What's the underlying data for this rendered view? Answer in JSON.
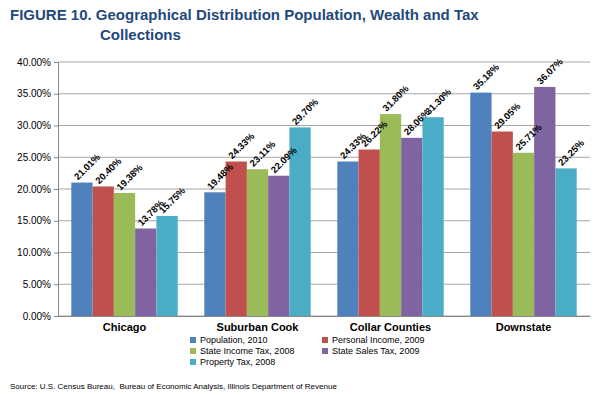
{
  "chart_data": {
    "type": "bar",
    "title": "FIGURE 10.  Geographical Distribution Population, Wealth and Tax Collections",
    "categories": [
      "Chicago",
      "Suburban Cook",
      "Collar Counties",
      "Downstate"
    ],
    "series": [
      {
        "name": "Population, 2010",
        "color": "#4f81bd",
        "values": [
          21.01,
          19.48,
          24.33,
          35.18
        ],
        "value_labels": [
          "21.01%",
          "19.48%",
          "24.33%",
          "35.18%"
        ]
      },
      {
        "name": "Personal Income, 2009",
        "color": "#c0504d",
        "values": [
          20.4,
          24.33,
          26.22,
          29.05
        ],
        "value_labels": [
          "20.40%",
          "24.33%",
          "26.22%",
          "29.05%"
        ]
      },
      {
        "name": "State Income Tax, 2008",
        "color": "#9bbb59",
        "values": [
          19.38,
          23.11,
          31.8,
          25.71
        ],
        "value_labels": [
          "19.38%",
          "23.11%",
          "31.80%",
          "25.71%"
        ]
      },
      {
        "name": "State Sales Tax, 2009",
        "color": "#8064a2",
        "values": [
          13.78,
          22.09,
          28.06,
          36.07
        ],
        "value_labels": [
          "13.78%",
          "22.09%",
          "28.06%",
          "36.07%"
        ]
      },
      {
        "name": "Property Tax, 2008",
        "color": "#4bacc6",
        "values": [
          15.75,
          29.7,
          31.3,
          23.25
        ],
        "value_labels": [
          "15.75%",
          "29.70%",
          "31.30%",
          "23.25%"
        ]
      }
    ],
    "ylim": [
      0,
      40
    ],
    "yticks": [
      {
        "value": 0,
        "label": "0.00%"
      },
      {
        "value": 5,
        "label": "5.00%"
      },
      {
        "value": 10,
        "label": "10.00%"
      },
      {
        "value": 15,
        "label": "15.00%"
      },
      {
        "value": 20,
        "label": "20.00%"
      },
      {
        "value": 25,
        "label": "25.00%"
      },
      {
        "value": 30,
        "label": "30.00%"
      },
      {
        "value": 35,
        "label": "35.00%"
      },
      {
        "value": 40,
        "label": "40.00%"
      }
    ],
    "grid": true,
    "legend": "bottom",
    "data_labels": true,
    "annotations": [
      "Source: U.S. Census Bureau,  Bureau of Economic Analysis, Illinois Department of Revenue"
    ]
  }
}
